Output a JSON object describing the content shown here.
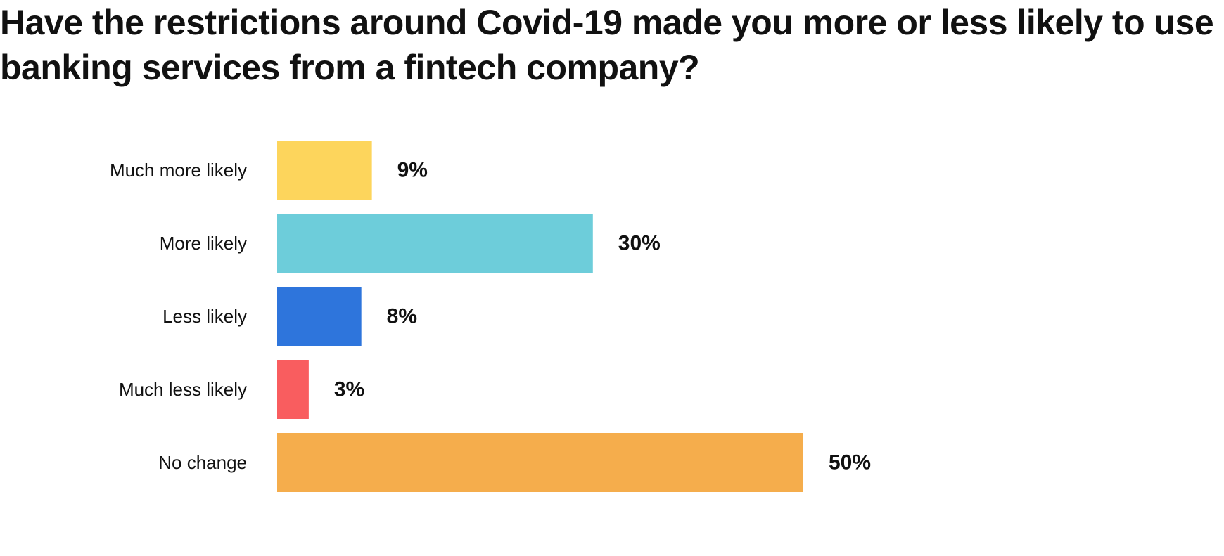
{
  "chart_data": {
    "type": "bar",
    "orientation": "horizontal",
    "title": "Have the restrictions around Covid-19 made you more or less likely to use banking services from a fintech company?",
    "categories": [
      "Much more likely",
      "More likely",
      "Less likely",
      "Much less likely",
      "No change"
    ],
    "values": [
      9,
      30,
      8,
      3,
      50
    ],
    "value_labels": [
      "9%",
      "30%",
      "8%",
      "3%",
      "50%"
    ],
    "unit": "%",
    "colors": [
      "#FDD55C",
      "#6DCDDA",
      "#2E75DC",
      "#F95D5F",
      "#F5AD4C"
    ],
    "xlim": [
      0,
      50
    ],
    "grid": false,
    "legend": "none"
  }
}
